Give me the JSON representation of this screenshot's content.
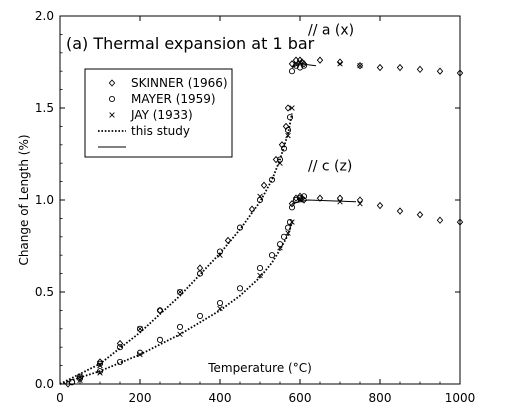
{
  "chart_data": {
    "type": "scatter",
    "title": "(a) Thermal expansion at 1 bar",
    "xlabel": "Temperature (°C)",
    "ylabel": "Change of Length (%)",
    "xlim": [
      0,
      1000
    ],
    "ylim": [
      0,
      2.0
    ],
    "x_ticks": [
      0,
      200,
      400,
      600,
      800,
      1000
    ],
    "y_ticks": [
      0.0,
      0.5,
      1.0,
      1.5,
      2.0
    ],
    "x_tick_labels": [
      "0",
      "200",
      "400",
      "600",
      "800",
      "1000"
    ],
    "y_tick_labels": [
      "0.0",
      "0.5",
      "1.0",
      "1.5",
      "2.0"
    ],
    "grid": false,
    "legend_position": "top-left",
    "annotations": [
      {
        "text": "// a (x)",
        "x": 620,
        "y": 1.9
      },
      {
        "text": "// c (z)",
        "x": 620,
        "y": 1.16
      }
    ],
    "series": [
      {
        "name": "SKINNER (1966)",
        "marker": "diamond",
        "x": [
          20,
          100,
          150,
          250,
          350,
          420,
          480,
          510,
          540,
          555,
          565,
          570,
          580,
          590,
          600,
          605,
          610,
          650,
          700,
          750,
          800,
          850,
          900,
          950,
          1000,
          580,
          590,
          600,
          605,
          610,
          650,
          700,
          750,
          800,
          850,
          900,
          950,
          1000
        ],
        "y": [
          0.0,
          0.12,
          0.22,
          0.4,
          0.63,
          0.78,
          0.95,
          1.08,
          1.22,
          1.3,
          1.4,
          1.5,
          1.74,
          1.76,
          1.76,
          1.75,
          1.74,
          1.76,
          1.75,
          1.73,
          1.72,
          1.72,
          1.71,
          1.7,
          1.69,
          0.98,
          1.01,
          1.02,
          1.01,
          1.0,
          1.01,
          1.01,
          1.0,
          0.97,
          0.94,
          0.92,
          0.89,
          0.88
        ]
      },
      {
        "name": "MAYER (1959)",
        "marker": "circle",
        "x": [
          30,
          50,
          100,
          150,
          200,
          250,
          300,
          350,
          400,
          450,
          500,
          530,
          550,
          560,
          570,
          575,
          580,
          590,
          600,
          610,
          30,
          50,
          100,
          150,
          200,
          250,
          300,
          350,
          400,
          450,
          500,
          530,
          550,
          560,
          570,
          575,
          580,
          590,
          600,
          610
        ],
        "y": [
          0.01,
          0.04,
          0.11,
          0.2,
          0.3,
          0.4,
          0.5,
          0.6,
          0.72,
          0.85,
          1.0,
          1.11,
          1.22,
          1.28,
          1.38,
          1.45,
          1.7,
          1.73,
          1.72,
          1.73,
          0.01,
          0.03,
          0.07,
          0.12,
          0.17,
          0.24,
          0.31,
          0.37,
          0.44,
          0.52,
          0.63,
          0.7,
          0.76,
          0.8,
          0.85,
          0.88,
          0.96,
          1.0,
          1.01,
          1.02
        ]
      },
      {
        "name": "JAY (1933)",
        "marker": "x",
        "x": [
          50,
          100,
          200,
          300,
          400,
          500,
          550,
          570,
          580,
          590,
          600,
          700,
          750,
          50,
          100,
          200,
          300,
          400,
          500,
          550,
          570,
          580,
          600,
          700,
          750
        ],
        "y": [
          0.04,
          0.1,
          0.3,
          0.5,
          0.7,
          1.02,
          1.2,
          1.35,
          1.5,
          1.74,
          1.75,
          1.74,
          1.73,
          0.02,
          0.06,
          0.16,
          0.27,
          0.41,
          0.59,
          0.74,
          0.82,
          0.88,
          1.0,
          0.99,
          0.98
        ]
      },
      {
        "name": "this study",
        "style": "dotted",
        "x": [
          0,
          100,
          200,
          300,
          400,
          450,
          500,
          530,
          550,
          570,
          580
        ],
        "y": [
          0,
          0.11,
          0.28,
          0.48,
          0.71,
          0.84,
          0.99,
          1.11,
          1.22,
          1.36,
          1.47
        ]
      },
      {
        "name": "this study",
        "style": "dotted",
        "x": [
          0,
          100,
          200,
          300,
          400,
          450,
          500,
          530,
          550,
          570,
          580
        ],
        "y": [
          0,
          0.07,
          0.16,
          0.27,
          0.4,
          0.48,
          0.58,
          0.66,
          0.73,
          0.81,
          0.88
        ]
      },
      {
        "name": "this study",
        "style": "solid",
        "x": [
          580,
          600,
          640
        ],
        "y": [
          1.72,
          1.74,
          1.73
        ]
      },
      {
        "name": "this study",
        "style": "solid",
        "x": [
          580,
          620,
          740
        ],
        "y": [
          0.98,
          1.0,
          0.99
        ]
      }
    ],
    "legend": [
      {
        "label": "SKINNER (1966)",
        "marker": "diamond"
      },
      {
        "label": "MAYER (1959)",
        "marker": "circle"
      },
      {
        "label": "JAY (1933)",
        "marker": "x"
      },
      {
        "label": "this study",
        "marker": "dotted"
      },
      {
        "label": "",
        "marker": "solid"
      }
    ]
  }
}
